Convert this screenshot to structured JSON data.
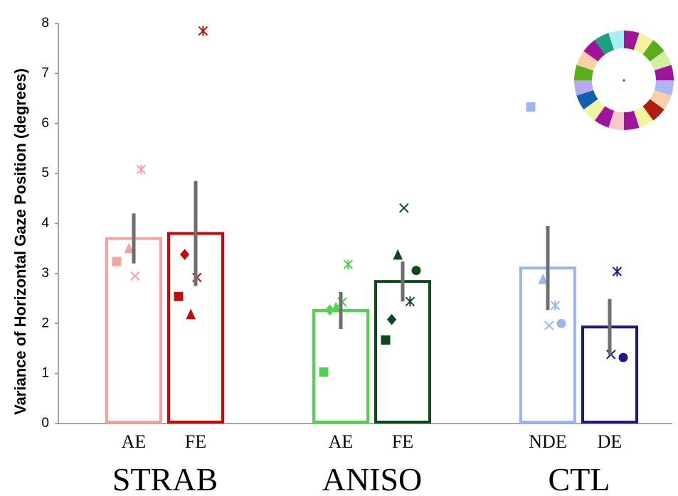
{
  "chart_data": {
    "type": "bar",
    "y_label": "Variance of Horizontal Gaze Position (degrees)",
    "ylim": [
      0,
      8
    ],
    "yticks": [
      0,
      1,
      2,
      3,
      4,
      5,
      6,
      7,
      8
    ],
    "groups": [
      {
        "name": "STRAB",
        "bars": [
          {
            "category": "AE",
            "value": 3.7,
            "error": 0.5,
            "color": "#f4a3a3",
            "points": [
              {
                "marker": "square",
                "value": 3.24
              },
              {
                "marker": "triangle",
                "value": 3.5
              },
              {
                "marker": "x",
                "value": 2.95
              },
              {
                "marker": "star",
                "value": 5.08
              }
            ]
          },
          {
            "category": "FE",
            "value": 3.8,
            "error": 1.05,
            "color": "#c40a0a",
            "points": [
              {
                "marker": "square",
                "value": 2.54
              },
              {
                "marker": "diamond",
                "value": 3.38
              },
              {
                "marker": "triangle",
                "value": 2.18
              },
              {
                "marker": "x",
                "value": 2.92
              },
              {
                "marker": "star",
                "value": 7.85
              }
            ]
          }
        ]
      },
      {
        "name": "ANISO",
        "bars": [
          {
            "category": "AE",
            "value": 2.26,
            "error": 0.37,
            "color": "#4fd34f",
            "points": [
              {
                "marker": "square",
                "value": 1.03
              },
              {
                "marker": "diamond",
                "value": 2.27
              },
              {
                "marker": "triangle",
                "value": 2.32
              },
              {
                "marker": "x",
                "value": 2.43
              },
              {
                "marker": "star",
                "value": 3.18
              }
            ]
          },
          {
            "category": "FE",
            "value": 2.84,
            "error": 0.4,
            "color": "#0c4a1c",
            "points": [
              {
                "marker": "square",
                "value": 1.67
              },
              {
                "marker": "diamond",
                "value": 2.08
              },
              {
                "marker": "triangle",
                "value": 3.37
              },
              {
                "marker": "x",
                "value": 4.31
              },
              {
                "marker": "star",
                "value": 2.44
              },
              {
                "marker": "circle",
                "value": 3.06
              }
            ]
          }
        ]
      },
      {
        "name": "CTL",
        "bars": [
          {
            "category": "NDE",
            "value": 3.11,
            "error": 0.84,
            "color": "#98b6ef",
            "points": [
              {
                "marker": "square",
                "value": 6.33
              },
              {
                "marker": "triangle",
                "value": 2.88
              },
              {
                "marker": "x",
                "value": 1.96
              },
              {
                "marker": "star",
                "value": 2.36
              },
              {
                "marker": "circle",
                "value": 2.0
              }
            ]
          },
          {
            "category": "DE",
            "value": 1.93,
            "error": 0.56,
            "color": "#1a1a82",
            "points": [
              {
                "marker": "x",
                "value": 1.38
              },
              {
                "marker": "star",
                "value": 3.04
              },
              {
                "marker": "circle",
                "value": 1.32
              }
            ]
          }
        ]
      }
    ]
  }
}
